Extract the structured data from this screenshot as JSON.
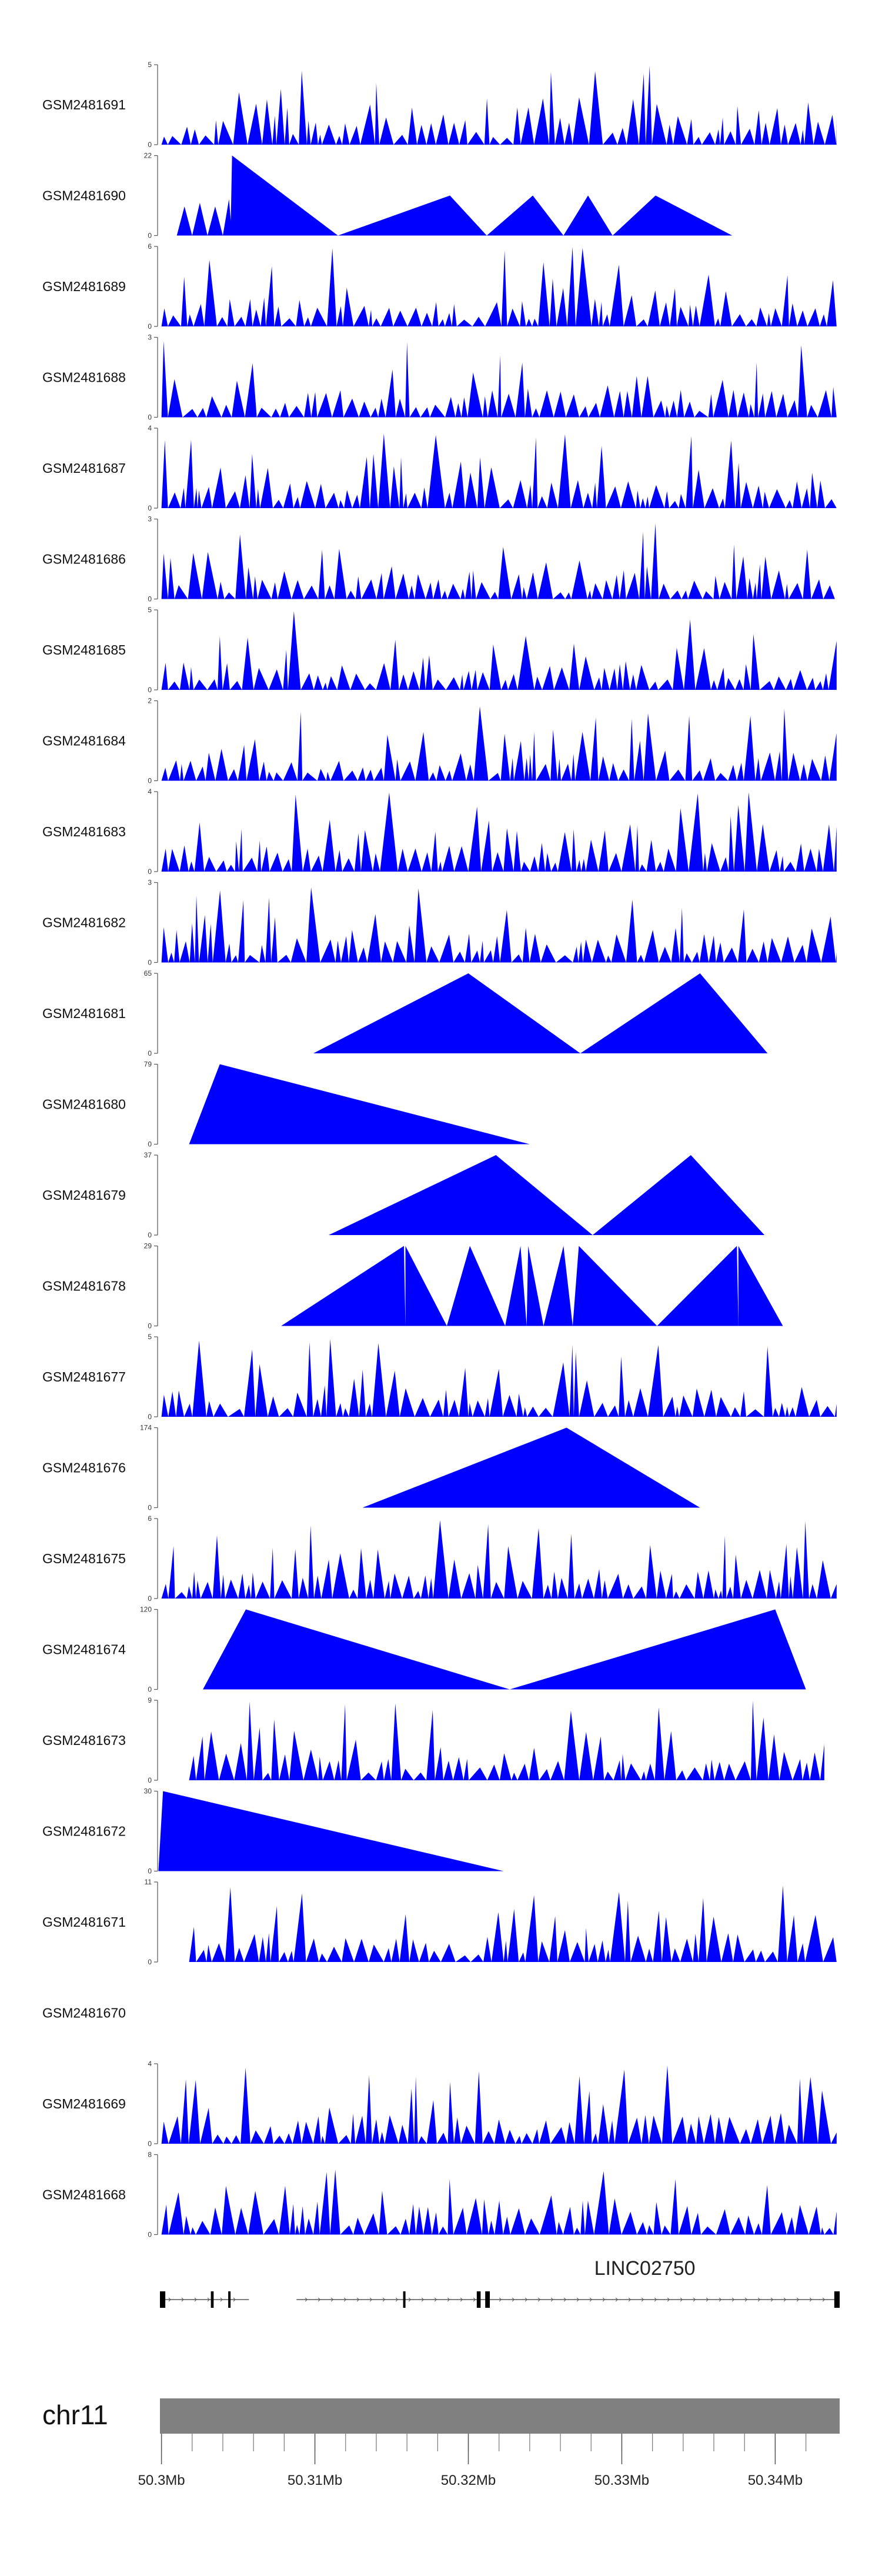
{
  "chart_data": {
    "type": "area",
    "colors": {
      "signal": "#0000ff",
      "ideogram": "#808080",
      "axis": "#555555"
    },
    "tracks": [
      {
        "label": "GSM2481691",
        "ymax": 5,
        "ymin": 0,
        "start": 50.3,
        "end": 50.344,
        "pattern": "dense",
        "seed": 11
      },
      {
        "label": "GSM2481690",
        "ymax": 22,
        "ymin": 0,
        "peaks": [
          [
            50.301,
            50.3015,
            50.302
          ],
          [
            50.302,
            50.3025,
            50.303
          ],
          [
            50.303,
            50.3035,
            50.304
          ],
          [
            50.304,
            50.3044,
            50.3046
          ],
          [
            50.3045,
            50.3046,
            50.3115
          ],
          [
            50.3115,
            50.3188,
            50.3212
          ],
          [
            50.3212,
            50.3242,
            50.3262
          ],
          [
            50.3262,
            50.3278,
            50.3294
          ],
          [
            50.3294,
            50.3322,
            50.3372
          ]
        ],
        "heights": [
          8,
          9,
          8,
          10,
          22,
          11,
          11,
          11,
          11
        ]
      },
      {
        "label": "GSM2481689",
        "ymax": 6,
        "ymin": 0,
        "start": 50.3,
        "end": 50.344,
        "pattern": "dense",
        "seed": 23
      },
      {
        "label": "GSM2481688",
        "ymax": 3,
        "ymin": 0,
        "start": 50.3,
        "end": 50.344,
        "pattern": "dense",
        "seed": 31
      },
      {
        "label": "GSM2481687",
        "ymax": 4,
        "ymin": 0,
        "start": 50.3,
        "end": 50.344,
        "pattern": "dense",
        "seed": 47
      },
      {
        "label": "GSM2481686",
        "ymax": 3,
        "ymin": 0,
        "start": 50.3,
        "end": 50.344,
        "pattern": "dense",
        "seed": 53
      },
      {
        "label": "GSM2481685",
        "ymax": 5,
        "ymin": 0,
        "start": 50.3,
        "end": 50.344,
        "pattern": "dense",
        "seed": 61
      },
      {
        "label": "GSM2481684",
        "ymax": 2,
        "ymin": 0,
        "start": 50.3,
        "end": 50.344,
        "pattern": "dense",
        "seed": 71
      },
      {
        "label": "GSM2481683",
        "ymax": 4,
        "ymin": 0,
        "start": 50.3,
        "end": 50.344,
        "pattern": "dense",
        "seed": 83
      },
      {
        "label": "GSM2481682",
        "ymax": 3,
        "ymin": 0,
        "start": 50.3,
        "end": 50.344,
        "pattern": "dense",
        "seed": 97
      },
      {
        "label": "GSM2481681",
        "ymax": 65,
        "ymin": 0,
        "peaks": [
          [
            50.3099,
            50.32,
            50.3273
          ],
          [
            50.3273,
            50.3351,
            50.3395
          ]
        ],
        "heights": [
          65,
          65
        ]
      },
      {
        "label": "GSM2481680",
        "ymax": 79,
        "ymin": 0,
        "peaks": [
          [
            50.3018,
            50.3038,
            50.324
          ]
        ],
        "heights": [
          79
        ]
      },
      {
        "label": "GSM2481679",
        "ymax": 37,
        "ymin": 0,
        "peaks": [
          [
            50.3109,
            50.3218,
            50.3281
          ],
          [
            50.3281,
            50.3345,
            50.3393
          ]
        ],
        "heights": [
          37,
          37
        ]
      },
      {
        "label": "GSM2481678",
        "ymax": 29,
        "ymin": 0,
        "peaks": [
          [
            50.3078,
            50.3158,
            50.3159
          ],
          [
            50.3159,
            50.3159,
            50.3186
          ],
          [
            50.3186,
            50.3201,
            50.3224
          ],
          [
            50.3224,
            50.3234,
            50.3238
          ],
          [
            50.3238,
            50.3239,
            50.3249
          ],
          [
            50.3249,
            50.3262,
            50.3268
          ],
          [
            50.3268,
            50.3272,
            50.3323
          ],
          [
            50.3323,
            50.3375,
            50.3376
          ],
          [
            50.3376,
            50.3376,
            50.3405
          ]
        ],
        "heights": [
          29,
          29,
          29,
          29,
          29,
          29,
          29,
          29,
          29
        ]
      },
      {
        "label": "GSM2481677",
        "ymax": 5,
        "ymin": 0,
        "start": 50.3,
        "end": 50.344,
        "pattern": "dense",
        "seed": 109
      },
      {
        "label": "GSM2481676",
        "ymax": 174,
        "ymin": 0,
        "peaks": [
          [
            50.3131,
            50.3264,
            50.3351
          ]
        ],
        "heights": [
          174
        ]
      },
      {
        "label": "GSM2481675",
        "ymax": 6,
        "ymin": 0,
        "start": 50.3,
        "end": 50.344,
        "pattern": "dense",
        "seed": 127
      },
      {
        "label": "GSM2481674",
        "ymax": 120,
        "ymin": 0,
        "peaks": [
          [
            50.3027,
            50.3055,
            50.3227
          ],
          [
            50.3227,
            50.34,
            50.342
          ]
        ],
        "heights": [
          120,
          120
        ]
      },
      {
        "label": "GSM2481673",
        "ymax": 9,
        "ymin": 0,
        "start": 50.3018,
        "end": 50.3432,
        "pattern": "dense",
        "seed": 139
      },
      {
        "label": "GSM2481672",
        "ymax": 30,
        "ymin": 0,
        "peaks": [
          [
            50.2998,
            50.3001,
            50.3223
          ]
        ],
        "heights": [
          30
        ]
      },
      {
        "label": "GSM2481671",
        "ymax": 11,
        "ymin": 0,
        "start": 50.3018,
        "end": 50.344,
        "pattern": "dense",
        "seed": 151
      },
      {
        "label": "GSM2481670",
        "empty": true
      },
      {
        "label": "GSM2481669",
        "ymax": 4,
        "ymin": 0,
        "start": 50.3,
        "end": 50.344,
        "pattern": "dense",
        "seed": 163
      },
      {
        "label": "GSM2481668",
        "ymax": 8,
        "ymin": 0,
        "start": 50.3,
        "end": 50.344,
        "pattern": "dense",
        "seed": 173
      }
    ],
    "gene": {
      "name": "LINC02750",
      "exons": [
        [
          50.2999,
          50.30025
        ],
        [
          50.30322,
          50.3034
        ],
        [
          50.30435,
          50.3045
        ],
        [
          50.31575,
          50.3159
        ],
        [
          50.32055,
          50.3208
        ],
        [
          50.3211,
          50.3214
        ],
        [
          50.34385,
          50.3442
        ]
      ],
      "segments": [
        [
          50.2999,
          50.3057
        ],
        [
          50.3088,
          50.3442
        ]
      ],
      "label_pos": 50.3315
    },
    "axis": {
      "chromosome": "chr11",
      "xmin": 50.2999,
      "xmax": 50.3442,
      "ticks": [
        50.3,
        50.31,
        50.32,
        50.33,
        50.34
      ],
      "tick_labels": [
        "50.3Mb",
        "50.31Mb",
        "50.32Mb",
        "50.33Mb",
        "50.34Mb"
      ],
      "minor_ticks": [
        50.3,
        50.302,
        50.304,
        50.306,
        50.308,
        50.31,
        50.312,
        50.314,
        50.316,
        50.318,
        50.32,
        50.322,
        50.324,
        50.326,
        50.328,
        50.33,
        50.332,
        50.334,
        50.336,
        50.338,
        50.34,
        50.342
      ]
    }
  }
}
